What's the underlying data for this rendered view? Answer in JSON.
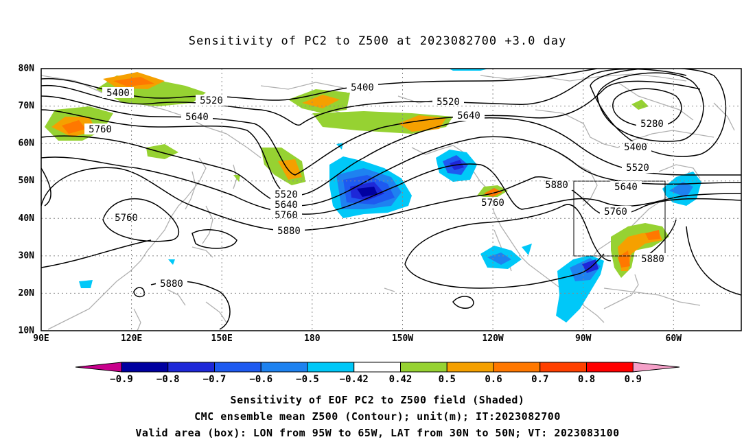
{
  "title": "Sensitivity of PC2 to Z500 at 2023082700 +3.0 day",
  "lat_labels": [
    "80N",
    "70N",
    "60N",
    "50N",
    "40N",
    "30N",
    "20N",
    "10N"
  ],
  "lon_labels": [
    "90E",
    "120E",
    "150E",
    "180",
    "150W",
    "120W",
    "90W",
    "60W"
  ],
  "contour_labels": [
    {
      "text": "5400"
    },
    {
      "text": "5400"
    },
    {
      "text": "5400"
    },
    {
      "text": "5520"
    },
    {
      "text": "5520"
    },
    {
      "text": "5520"
    },
    {
      "text": "5520"
    },
    {
      "text": "5640"
    },
    {
      "text": "5640"
    },
    {
      "text": "5640"
    },
    {
      "text": "5640"
    },
    {
      "text": "5760"
    },
    {
      "text": "5760"
    },
    {
      "text": "5760"
    },
    {
      "text": "5760"
    },
    {
      "text": "5760"
    },
    {
      "text": "5880"
    },
    {
      "text": "5880"
    },
    {
      "text": "5880"
    },
    {
      "text": "5880"
    },
    {
      "text": "5280"
    }
  ],
  "colorbar": {
    "labels": [
      "-0.9",
      "-0.8",
      "-0.7",
      "-0.6",
      "-0.5",
      "-0.42",
      "0.42",
      "0.5",
      "0.6",
      "0.7",
      "0.8",
      "0.9"
    ],
    "colors": [
      "#0000a0",
      "#1e28d8",
      "#1e5af0",
      "#1e82f0",
      "#00c8f8",
      "#ffffff",
      "#96d232",
      "#f5a000",
      "#ff7800",
      "#ff4000",
      "#ff0000"
    ],
    "under_color": "#c8008c",
    "over_color": "#f5a0c8"
  },
  "captions": [
    "Sensitivity of EOF PC2 to Z500 field (Shaded)",
    "CMC ensemble mean Z500 (Contour); unit(m); IT:2023082700",
    "Valid area (box): LON from 95W to 65W, LAT from 30N to 50N; VT: 2023083100"
  ]
}
